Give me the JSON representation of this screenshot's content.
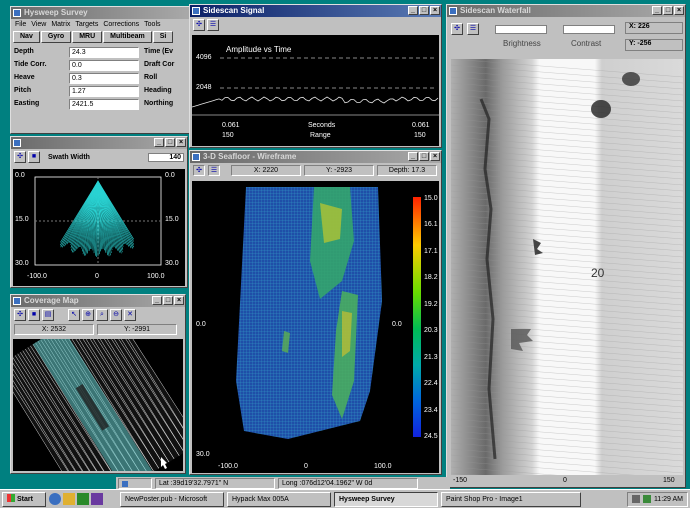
{
  "survey": {
    "title": "Hysweep Survey",
    "menu": [
      "File",
      "View",
      "Matrix",
      "Targets",
      "Corrections",
      "Tools"
    ],
    "tabs": [
      "Nav",
      "Gyro",
      "MRU",
      "Multibeam",
      "Si"
    ],
    "fields": [
      {
        "label": "Depth",
        "value": "24.3",
        "label2": "Time (Ev"
      },
      {
        "label": "Tide Corr.",
        "value": "0.0",
        "label2": "Draft Cor"
      },
      {
        "label": "Heave",
        "value": "0.3",
        "label2": "Roll"
      },
      {
        "label": "Pitch",
        "value": "1.27",
        "label2": "Heading"
      },
      {
        "label": "Easting",
        "value": "2421.5",
        "label2": "Northing"
      }
    ]
  },
  "sidescan_signal": {
    "title": "Sidescan Signal",
    "chart_title": "Amplitude vs Time",
    "y_top": "4096",
    "y_mid": "2048",
    "x_left_top": "0.061",
    "x_left_bottom": "150",
    "x_center_top": "Seconds",
    "x_center_bottom": "Range",
    "x_right_top": "0.061",
    "x_right_bottom": "150"
  },
  "swath": {
    "label": "Swath Width",
    "value": "140",
    "y_labels": [
      "0.0",
      "15.0",
      "30.0"
    ],
    "y_labels_right": [
      "0.0",
      "15.0",
      "30.0"
    ],
    "x_labels": [
      "-100.0",
      "0",
      "100.0"
    ]
  },
  "coverage": {
    "title": "Coverage Map",
    "x": "X: 2532",
    "y": "Y: -2991"
  },
  "seafloor": {
    "title": "3-D Seafloor - Wireframe",
    "x": "X: 2220",
    "y": "Y: -2923",
    "depth": "Depth: 17.3",
    "scale": [
      "15.0",
      "16.1",
      "17.1",
      "18.2",
      "19.2",
      "20.3",
      "21.3",
      "22.4",
      "23.4",
      "24.5"
    ],
    "left_labels": [
      "0.0",
      "30.0"
    ],
    "right_label": "0.0",
    "x_labels": [
      "-100.0",
      "0",
      "100.0"
    ]
  },
  "waterfall": {
    "title": "Sidescan Waterfall",
    "brightness": "Brightness",
    "contrast": "Contrast",
    "x": "X: 226",
    "y": "Y: -256",
    "x_labels": [
      "-150",
      "0",
      "150"
    ],
    "mark_20": "20"
  },
  "status": {
    "lat": "Lat :39d19'32.7971\" N",
    "long": "Long :076d12'04.1962\" W  0d"
  },
  "taskbar": {
    "start": "Start",
    "tasks": [
      "NewPoster.pub - Microsoft",
      "Hypack Max 005A",
      "Hysweep Survey",
      "Paint Shop Pro - Image1"
    ],
    "clock": "11:29 AM"
  },
  "colors": {
    "titlebar": "#0a1f66",
    "window": "#c0c0c0",
    "desktop": "#008080"
  }
}
